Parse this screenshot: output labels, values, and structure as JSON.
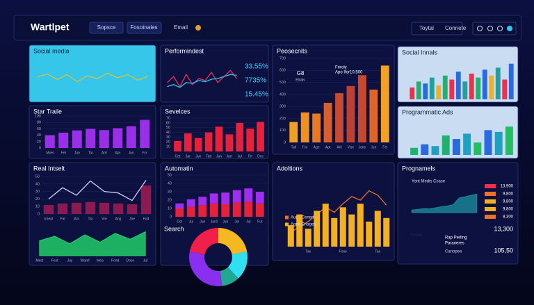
{
  "header": {
    "logo": "Wartlpet",
    "nav": [
      "Sopsce",
      "Fosotnales",
      "Email"
    ],
    "actions": [
      "Toytal",
      "Connete"
    ]
  },
  "chart_data": [
    {
      "type": "line",
      "title": "Social media",
      "background": "#35c6ea",
      "color": "#d9c23a",
      "values": [
        52,
        60,
        46,
        58,
        40,
        55,
        48,
        62,
        50,
        58,
        44,
        54
      ],
      "ylim": [
        0,
        100
      ]
    },
    {
      "type": "line",
      "title": "Performindest",
      "series": [
        {
          "color": "#e0345a",
          "values": [
            40,
            55,
            30,
            60,
            35,
            50,
            45,
            65,
            40,
            55,
            70,
            50
          ]
        },
        {
          "color": "#2ec5f0",
          "values": [
            30,
            35,
            28,
            40,
            38,
            45,
            42,
            48,
            50,
            55,
            60,
            58
          ]
        }
      ],
      "ylim": [
        0,
        100
      ],
      "annotations": [
        "33.55%",
        "7735%",
        "15.45%"
      ]
    },
    {
      "type": "bar",
      "title": "Peosecnits",
      "categories": [
        "Tall",
        "Far",
        "Age",
        "Apt",
        "Aril",
        "Vise",
        "Jane",
        "Jun",
        "Fel"
      ],
      "values": [
        170,
        250,
        240,
        330,
        410,
        470,
        560,
        440,
        640
      ],
      "colors": [
        "#f0a020",
        "#f09020",
        "#e87a24",
        "#d8602c",
        "#c84a30",
        "#c04030",
        "#c8482c",
        "#e06424",
        "#f4a020"
      ],
      "ylim": [
        0,
        700
      ],
      "yticks": [
        0,
        100,
        200,
        300,
        400,
        500,
        600,
        700
      ],
      "annotations": [
        "G8",
        "Elnals",
        "Feroly",
        "Apo Ifor10,500"
      ]
    },
    {
      "type": "bar",
      "title": "Social Innals",
      "background": "#c9dcf2",
      "values": [
        30,
        45,
        40,
        55,
        35,
        60,
        50,
        70,
        45,
        65,
        55,
        75,
        60,
        80,
        50,
        90
      ],
      "colors": [
        "#f0304a",
        "#20b070",
        "#2a6ae0",
        "#20a0a0",
        "#f0b020",
        "#20b070",
        "#f0304a",
        "#2a6ae0",
        "#20a0a0",
        "#f0304a",
        "#20b070",
        "#2a6ae0",
        "#f0b020",
        "#20a0a0",
        "#f0304a",
        "#2a6ae0"
      ],
      "ylim": [
        0,
        100
      ]
    },
    {
      "type": "bar",
      "title": "Star Traile",
      "categories": [
        "Mvel",
        "Fel",
        "Jun",
        "Tar",
        "Ard",
        "Apr",
        "Jun",
        "Fcr"
      ],
      "values": [
        40,
        48,
        55,
        60,
        56,
        62,
        68,
        88
      ],
      "color": "#9b2ee8",
      "ylim": [
        0,
        100
      ],
      "yticks": [
        0,
        20,
        40,
        60,
        80,
        100
      ]
    },
    {
      "type": "bar",
      "title": "Sevelces",
      "categories": [
        "Cet",
        "Jar",
        "Jun",
        "Tatt",
        "Jun",
        "Jurr",
        "Jul",
        "Frt",
        "Dec"
      ],
      "values": [
        22,
        38,
        28,
        40,
        52,
        36,
        60,
        48,
        62
      ],
      "color": "#e8203a",
      "ylim": [
        0,
        70
      ],
      "yticks": [
        10,
        20,
        30,
        40,
        50,
        60,
        70
      ]
    },
    {
      "type": "bar",
      "title": "Programmatic Ads",
      "background": "#c9dcf2",
      "values": [
        20,
        30,
        25,
        55,
        45,
        60,
        35,
        70,
        65,
        80
      ],
      "colors": [
        "#20b070",
        "#2a6ae0",
        "#20a0c0",
        "#20b070",
        "#2a6ae0",
        "#20a0c0",
        "#20c060",
        "#2a6ae0",
        "#20a0c0",
        "#20c060"
      ],
      "ylim": [
        0,
        100
      ]
    },
    {
      "type": "combo",
      "title": "Real Intselt",
      "categories": [
        "Imeal",
        "Fal",
        "Aoi",
        "Tar",
        "Vre",
        "Ang",
        "Joe",
        "Fod"
      ],
      "series": [
        {
          "type": "bar",
          "color": "#8a1a50",
          "values": [
            12,
            14,
            15,
            16,
            15,
            14,
            13,
            38
          ]
        },
        {
          "type": "line",
          "color": "#d0d0ff",
          "values": [
            20,
            35,
            25,
            44,
            30,
            28,
            18,
            45
          ]
        }
      ],
      "ylim": [
        0,
        50
      ],
      "yticks": [
        0,
        10,
        20,
        30,
        40,
        50
      ]
    },
    {
      "type": "area",
      "categories": [
        "Mest",
        "Fest",
        "Juy",
        "Waref",
        "Mea",
        "Fond",
        "Doce",
        "Juf"
      ],
      "color": "#22d86a",
      "values": [
        50,
        65,
        40,
        70,
        45,
        75,
        55,
        80
      ],
      "ylim": [
        0,
        100
      ]
    },
    {
      "type": "bar",
      "title": "Automatin",
      "stacked": true,
      "categories": [
        "Oct",
        "Jui",
        "Jun",
        "Jurd",
        "Jun",
        "Jor",
        "Jul",
        "Fut"
      ],
      "series": [
        {
          "color": "#e8203a",
          "values": [
            10,
            12,
            14,
            16,
            15,
            17,
            18,
            16
          ]
        },
        {
          "color": "#a02ef0",
          "values": [
            6,
            9,
            10,
            12,
            14,
            15,
            16,
            14
          ]
        }
      ],
      "ylim": [
        0,
        50
      ],
      "yticks": [
        0,
        10,
        20,
        30,
        40,
        50
      ]
    },
    {
      "type": "pie",
      "title": "Search",
      "values": [
        22,
        16,
        10,
        30,
        22
      ],
      "colors": [
        "#f5b820",
        "#30e0f0",
        "#20a890",
        "#8a2ef0",
        "#f0204a"
      ]
    },
    {
      "type": "combo",
      "title": "Adoltions",
      "categories": [
        null,
        null,
        "Tae",
        null,
        null,
        null,
        "Fone",
        null,
        null,
        null,
        "Tae",
        null
      ],
      "series": [
        {
          "name": "Aupe Cenerts",
          "type": "line",
          "color": "#f07028",
          "values": [
            20,
            28,
            35,
            45,
            55,
            48,
            60,
            70,
            65,
            78,
            72,
            58
          ]
        },
        {
          "name": "Agpe Cnages",
          "type": "bar",
          "color": "#f5b020",
          "values": [
            30,
            45,
            25,
            50,
            60,
            40,
            55,
            45,
            60,
            35,
            50,
            40
          ]
        }
      ],
      "ylim": [
        0,
        100
      ]
    },
    {
      "type": "area",
      "title": "Prognamels",
      "color": "#1a8a9a",
      "values": [
        10,
        12,
        15,
        14,
        18,
        22,
        25,
        30,
        55,
        60,
        65,
        70
      ],
      "ylim": [
        0,
        100
      ],
      "annotations": [
        "Yont Medis Ccase",
        "13,900",
        "9,800",
        "9,800",
        "9,800",
        "8,300",
        "Gactiod",
        "Rap Perling",
        "Paraneres",
        "Canopee",
        "13,300",
        "105,50"
      ]
    }
  ]
}
